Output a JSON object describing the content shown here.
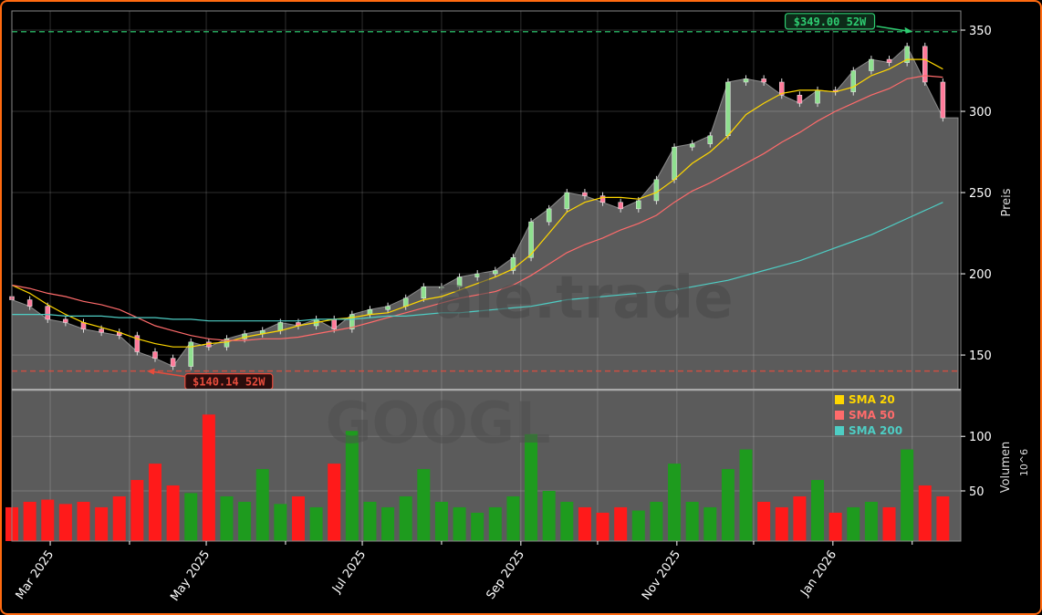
{
  "chart_data": {
    "type": "candlestick",
    "ticker": "GOOGL",
    "watermark": "ale.trade",
    "dates": [
      "2025-02-14",
      "2025-02-21",
      "2025-02-28",
      "2025-03-07",
      "2025-03-14",
      "2025-03-21",
      "2025-03-28",
      "2025-04-04",
      "2025-04-11",
      "2025-04-18",
      "2025-04-25",
      "2025-05-02",
      "2025-05-09",
      "2025-05-16",
      "2025-05-23",
      "2025-05-30",
      "2025-06-06",
      "2025-06-13",
      "2025-06-20",
      "2025-06-27",
      "2025-07-04",
      "2025-07-11",
      "2025-07-18",
      "2025-07-25",
      "2025-08-01",
      "2025-08-08",
      "2025-08-15",
      "2025-08-22",
      "2025-08-29",
      "2025-09-05",
      "2025-09-12",
      "2025-09-19",
      "2025-09-26",
      "2025-10-03",
      "2025-10-10",
      "2025-10-17",
      "2025-10-24",
      "2025-10-31",
      "2025-11-07",
      "2025-11-14",
      "2025-11-21",
      "2025-11-28",
      "2025-12-05",
      "2025-12-12",
      "2025-12-19",
      "2025-12-26",
      "2026-01-02",
      "2026-01-09",
      "2026-01-16",
      "2026-01-23",
      "2026-01-30",
      "2026-02-06",
      "2026-02-13"
    ],
    "close": [
      184,
      180,
      172,
      170,
      166,
      164,
      162,
      152,
      148,
      143,
      158,
      155,
      160,
      163,
      165,
      170,
      168,
      172,
      166,
      175,
      178,
      180,
      185,
      192,
      192,
      198,
      200,
      202,
      210,
      232,
      240,
      250,
      248,
      244,
      240,
      245,
      258,
      278,
      280,
      285,
      318,
      320,
      318,
      310,
      305,
      313,
      312,
      325,
      332,
      330,
      340,
      318,
      296
    ],
    "volume": [
      35,
      40,
      42,
      38,
      40,
      35,
      45,
      60,
      75,
      55,
      48,
      120,
      45,
      40,
      70,
      38,
      45,
      35,
      75,
      105,
      40,
      35,
      45,
      70,
      40,
      35,
      30,
      35,
      45,
      102,
      50,
      40,
      35,
      30,
      35,
      32,
      40,
      75,
      40,
      35,
      70,
      88,
      40,
      35,
      45,
      60,
      30,
      35,
      40,
      35,
      88,
      55,
      45
    ],
    "series": [
      {
        "name": "SMA 20",
        "color": "#ffd700",
        "values": [
          193,
          188,
          181,
          175,
          170,
          167,
          164,
          160,
          157,
          155,
          155,
          157,
          158,
          161,
          163,
          165,
          168,
          170,
          172,
          173,
          175,
          176,
          180,
          184,
          186,
          190,
          194,
          198,
          203,
          212,
          225,
          238,
          244,
          247,
          247,
          246,
          250,
          258,
          268,
          275,
          285,
          298,
          305,
          311,
          313,
          313,
          312,
          315,
          322,
          326,
          332,
          332,
          326
        ]
      },
      {
        "name": "SMA 50",
        "color": "#ff6b6b",
        "values": [
          193,
          191,
          188,
          186,
          183,
          181,
          178,
          173,
          168,
          165,
          162,
          160,
          159,
          159,
          160,
          160,
          161,
          163,
          165,
          167,
          170,
          173,
          176,
          179,
          182,
          185,
          187,
          189,
          193,
          199,
          206,
          213,
          218,
          222,
          227,
          231,
          236,
          244,
          251,
          256,
          262,
          268,
          274,
          281,
          287,
          294,
          300,
          305,
          310,
          314,
          320,
          322,
          321
        ]
      },
      {
        "name": "SMA 200",
        "color": "#4ecdc4",
        "values": [
          175,
          175,
          175,
          174,
          174,
          174,
          173,
          173,
          173,
          172,
          172,
          171,
          171,
          171,
          171,
          171,
          171,
          172,
          172,
          172,
          173,
          174,
          174,
          175,
          176,
          176,
          177,
          178,
          179,
          180,
          182,
          184,
          185,
          186,
          187,
          188,
          189,
          190,
          192,
          194,
          196,
          199,
          202,
          205,
          208,
          212,
          216,
          220,
          224,
          229,
          234,
          239,
          244
        ]
      }
    ],
    "high_52w": {
      "value": 349.0,
      "label": "$349.00 52W",
      "date": "2026-02-02",
      "color": "#2ecc71"
    },
    "low_52w": {
      "value": 140.14,
      "label": "$140.14 52W",
      "date": "2025-04-07",
      "color": "#e74c3c"
    },
    "up_color": "#1e9b1e",
    "down_color": "#ff1a1a",
    "xlim": [
      "2025-02-14",
      "2026-02-20"
    ],
    "price_ylim": [
      128.7,
      361.8
    ],
    "volume_ylim": [
      4,
      142
    ],
    "x_ticks": [
      "Mar 2025",
      "May 2025",
      "Jul 2025",
      "Sep 2025",
      "Nov 2025",
      "Jan 2026"
    ],
    "x_tick_dates": [
      "2025-03-01",
      "2025-05-01",
      "2025-07-01",
      "2025-09-01",
      "2025-11-01",
      "2026-01-01"
    ],
    "minor_tick_dates": [
      "2025-04-01",
      "2025-06-01",
      "2025-08-01",
      "2025-10-01",
      "2025-12-01",
      "2026-02-01"
    ],
    "price_ticks": [
      150,
      200,
      250,
      300,
      350
    ],
    "volume_ticks": [
      50,
      100
    ],
    "price_ylabel": "Preis",
    "volume_ylabel": "Volumen",
    "volume_unit": "10^6",
    "grid": true,
    "legend_placement": "top-right of volume panel"
  }
}
